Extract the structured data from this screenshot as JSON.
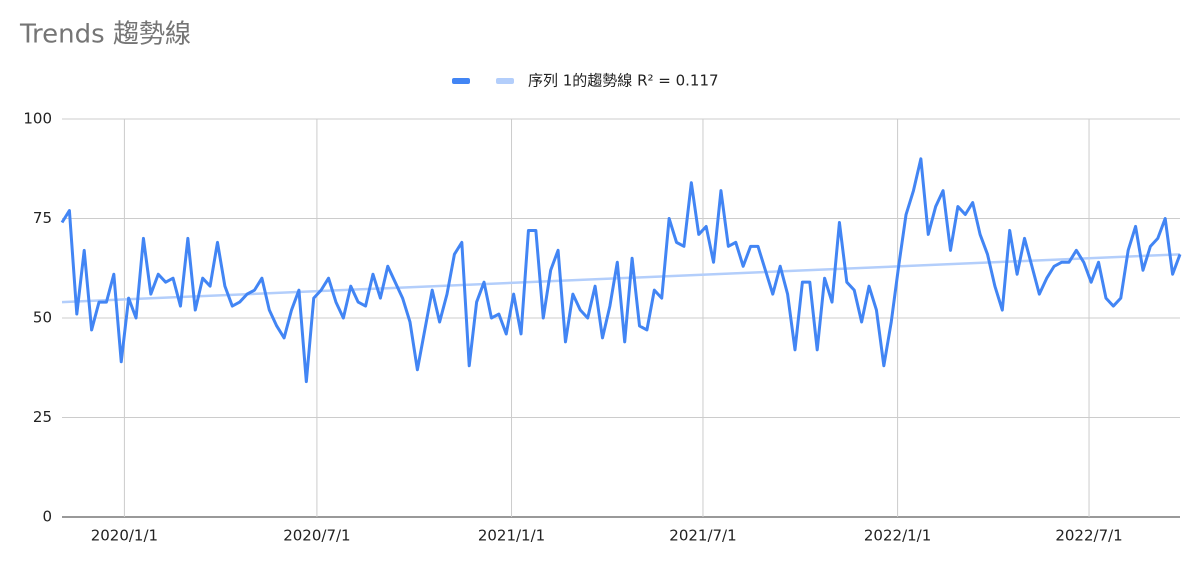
{
  "chart_data": {
    "type": "line",
    "title": "Trends 趨勢線",
    "x": [
      "2019/11/3",
      "2019/11/10",
      "2019/11/17",
      "2019/11/24",
      "2019/12/1",
      "2019/12/8",
      "2019/12/15",
      "2019/12/22",
      "2019/12/29",
      "2020/1/5",
      "2020/1/12",
      "2020/1/19",
      "2020/1/26",
      "2020/2/2",
      "2020/2/9",
      "2020/2/16",
      "2020/2/23",
      "2020/3/1",
      "2020/3/8",
      "2020/3/15",
      "2020/3/22",
      "2020/3/29",
      "2020/4/5",
      "2020/4/12",
      "2020/4/19",
      "2020/4/26",
      "2020/5/3",
      "2020/5/10",
      "2020/5/17",
      "2020/5/24",
      "2020/5/31",
      "2020/6/7",
      "2020/6/14",
      "2020/6/21",
      "2020/6/28",
      "2020/7/5",
      "2020/7/12",
      "2020/7/19",
      "2020/7/26",
      "2020/8/2",
      "2020/8/9",
      "2020/8/16",
      "2020/8/23",
      "2020/8/30",
      "2020/9/6",
      "2020/9/13",
      "2020/9/20",
      "2020/9/27",
      "2020/10/4",
      "2020/10/11",
      "2020/10/18",
      "2020/10/25",
      "2020/11/1",
      "2020/11/8",
      "2020/11/15",
      "2020/11/22",
      "2020/11/29",
      "2020/12/6",
      "2020/12/13",
      "2020/12/20",
      "2020/12/27",
      "2021/1/3",
      "2021/1/10",
      "2021/1/17",
      "2021/1/24",
      "2021/1/31",
      "2021/2/7",
      "2021/2/14",
      "2021/2/21",
      "2021/2/28",
      "2021/3/7",
      "2021/3/14",
      "2021/3/21",
      "2021/3/28",
      "2021/4/4",
      "2021/4/11",
      "2021/4/18",
      "2021/4/25",
      "2021/5/2",
      "2021/5/9",
      "2021/5/16",
      "2021/5/23",
      "2021/5/30",
      "2021/6/6",
      "2021/6/13",
      "2021/6/20",
      "2021/6/27",
      "2021/7/4",
      "2021/7/11",
      "2021/7/18",
      "2021/7/25",
      "2021/8/1",
      "2021/8/8",
      "2021/8/15",
      "2021/8/22",
      "2021/8/29",
      "2021/9/5",
      "2021/9/12",
      "2021/9/19",
      "2021/9/26",
      "2021/10/3",
      "2021/10/10",
      "2021/10/17",
      "2021/10/24",
      "2021/10/31",
      "2021/11/7",
      "2021/11/14",
      "2021/11/21",
      "2021/11/28",
      "2021/12/5",
      "2021/12/12",
      "2021/12/19",
      "2021/12/26",
      "2022/1/2",
      "2022/1/9",
      "2022/1/16",
      "2022/1/23",
      "2022/1/30",
      "2022/2/6",
      "2022/2/13",
      "2022/2/20",
      "2022/2/27",
      "2022/3/6",
      "2022/3/13",
      "2022/3/20",
      "2022/3/27",
      "2022/4/3",
      "2022/4/10",
      "2022/4/17",
      "2022/4/24",
      "2022/5/1",
      "2022/5/8",
      "2022/5/15",
      "2022/5/22",
      "2022/5/29",
      "2022/6/5",
      "2022/6/12",
      "2022/6/19",
      "2022/6/26",
      "2022/7/3",
      "2022/7/10",
      "2022/7/17",
      "2022/7/24",
      "2022/7/31",
      "2022/8/7",
      "2022/8/14",
      "2022/8/21",
      "2022/8/28",
      "2022/9/4",
      "2022/9/11",
      "2022/9/18",
      "2022/9/25"
    ],
    "series": [
      {
        "color": "#4285f4",
        "values": [
          74,
          77,
          51,
          67,
          47,
          54,
          54,
          61,
          39,
          55,
          50,
          70,
          56,
          61,
          59,
          60,
          53,
          70,
          52,
          60,
          58,
          69,
          58,
          53,
          54,
          56,
          57,
          60,
          52,
          48,
          45,
          52,
          57,
          34,
          55,
          57,
          60,
          54,
          50,
          58,
          54,
          53,
          61,
          55,
          63,
          59,
          55,
          49,
          37,
          47,
          57,
          49,
          56,
          66,
          69,
          38,
          54,
          59,
          50,
          51,
          46,
          56,
          46,
          72,
          72,
          50,
          62,
          67,
          44,
          56,
          52,
          50,
          58,
          45,
          53,
          64,
          44,
          65,
          48,
          47,
          57,
          55,
          75,
          69,
          68,
          84,
          71,
          73,
          64,
          82,
          68,
          69,
          63,
          68,
          68,
          62,
          56,
          63,
          56,
          42,
          59,
          59,
          42,
          60,
          54,
          74,
          59,
          57,
          49,
          58,
          52,
          38,
          49,
          63,
          76,
          82,
          90,
          71,
          78,
          82,
          67,
          78,
          76,
          79,
          71,
          66,
          58,
          52,
          72,
          61,
          70,
          63,
          56,
          60,
          63,
          64,
          64,
          67,
          64,
          59,
          64,
          55,
          53,
          55,
          67,
          73,
          62,
          68,
          70,
          75,
          61,
          66
        ]
      }
    ],
    "trendline": {
      "name": "序列 1的趨勢線 R² = 0.117",
      "color": "#b3cefb",
      "start": 54,
      "end": 66
    },
    "xticks": [
      "2020/1/1",
      "2020/7/1",
      "2021/1/1",
      "2021/7/1",
      "2022/1/1",
      "2022/7/1"
    ],
    "ylim": [
      0,
      100
    ],
    "yticks": [
      0,
      25,
      50,
      75,
      100
    ],
    "grid": true
  }
}
